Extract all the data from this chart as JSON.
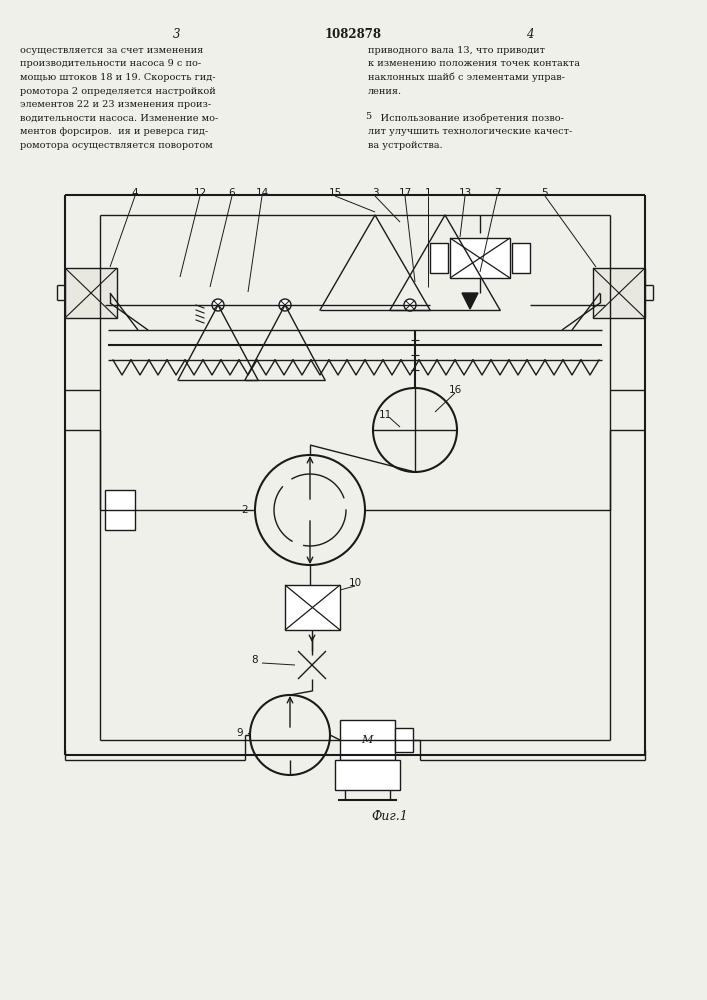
{
  "bg_color": "#f0f0eb",
  "line_color": "#1a1a1a",
  "text_color": "#1a1a1a",
  "page_number_left": "3",
  "page_number_center": "1082878",
  "page_number_right": "4",
  "fig_label": "Фиг.1",
  "text_left": "осуществляется за счет изменения\nпроизводительности насоса 9 с по-\nмощью штоков 18 и 19. Скорость гид-\nромотора 2 определяется настройкой\nэлементов 22 и 23 изменения произ-\nводительности насоса. Изменение мо-\nментов форсиров.  ия и реверса гид-\nромотора осуществляется поворотом",
  "text_right": "приводного вала 13, что приводит\nк изменению положения точек контакта\nнаклонных шайб с элементами управ-\nления.\n\n    Использование изобретения позво-\nлит улучшить технологические качест-\nва устройства."
}
